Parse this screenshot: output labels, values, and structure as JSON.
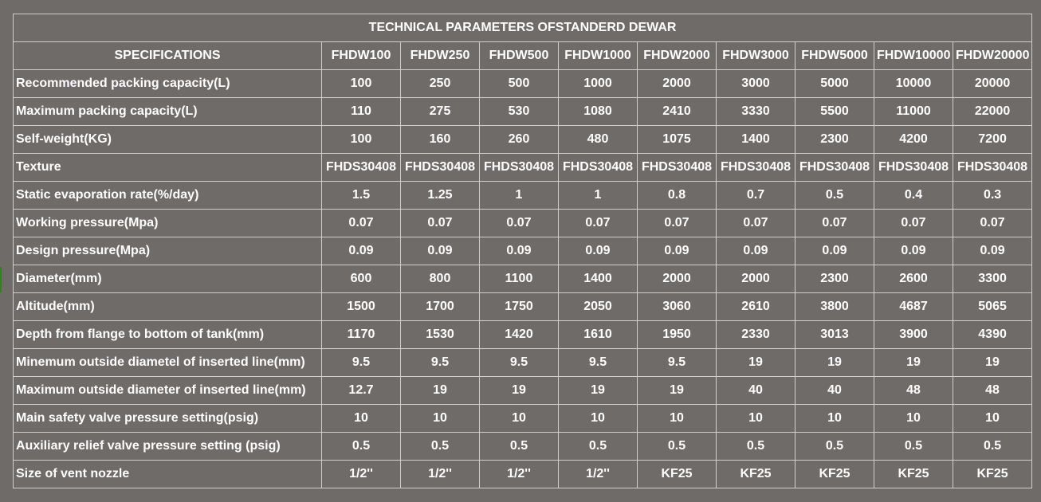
{
  "table": {
    "title": "TECHNICAL PARAMETERS OFSTANDERD DEWAR",
    "header_label": "SPECIFICATIONS",
    "models": [
      "FHDW100",
      "FHDW250",
      "FHDW500",
      "FHDW1000",
      "FHDW2000",
      "FHDW3000",
      "FHDW5000",
      "FHDW10000",
      "FHDW20000"
    ],
    "rows": [
      {
        "label": "Recommended packing capacity(L)",
        "values": [
          "100",
          "250",
          "500",
          "1000",
          "2000",
          "3000",
          "5000",
          "10000",
          "20000"
        ]
      },
      {
        "label": "Maximum packing capacity(L)",
        "values": [
          "110",
          "275",
          "530",
          "1080",
          "2410",
          "3330",
          "5500",
          "11000",
          "22000"
        ]
      },
      {
        "label": "Self-weight(KG)",
        "values": [
          "100",
          "160",
          "260",
          "480",
          "1075",
          "1400",
          "2300",
          "4200",
          "7200"
        ]
      },
      {
        "label": "Texture",
        "values": [
          "FHDS30408",
          "FHDS30408",
          "FHDS30408",
          "FHDS30408",
          "FHDS30408",
          "FHDS30408",
          "FHDS30408",
          "FHDS30408",
          "FHDS30408"
        ]
      },
      {
        "label": "Static evaporation rate(%/day)",
        "values": [
          "1.5",
          "1.25",
          "1",
          "1",
          "0.8",
          "0.7",
          "0.5",
          "0.4",
          "0.3"
        ]
      },
      {
        "label": "Working pressure(Mpa)",
        "values": [
          "0.07",
          "0.07",
          "0.07",
          "0.07",
          "0.07",
          "0.07",
          "0.07",
          "0.07",
          "0.07"
        ]
      },
      {
        "label": "Design pressure(Mpa)",
        "values": [
          "0.09",
          "0.09",
          "0.09",
          "0.09",
          "0.09",
          "0.09",
          "0.09",
          "0.09",
          "0.09"
        ]
      },
      {
        "label": "Diameter(mm)",
        "values": [
          "600",
          "800",
          "1100",
          "1400",
          "2000",
          "2000",
          "2300",
          "2600",
          "3300"
        ]
      },
      {
        "label": "Altitude(mm)",
        "values": [
          "1500",
          "1700",
          "1750",
          "2050",
          "3060",
          "2610",
          "3800",
          "4687",
          "5065"
        ]
      },
      {
        "label": "Depth from flange to bottom of tank(mm)",
        "values": [
          "1170",
          "1530",
          "1420",
          "1610",
          "1950",
          "2330",
          "3013",
          "3900",
          "4390"
        ]
      },
      {
        "label": "Minemum outside diametel of inserted line(mm)",
        "values": [
          "9.5",
          "9.5",
          "9.5",
          "9.5",
          "9.5",
          "19",
          "19",
          "19",
          "19"
        ]
      },
      {
        "label": "Maximum outside diameter of inserted line(mm)",
        "values": [
          "12.7",
          "19",
          "19",
          "19",
          "19",
          "40",
          "40",
          "48",
          "48"
        ]
      },
      {
        "label": "Main safety valve pressure setting(psig)",
        "values": [
          "10",
          "10",
          "10",
          "10",
          "10",
          "10",
          "10",
          "10",
          "10"
        ]
      },
      {
        "label": "Auxiliary relief valve pressure setting (psig)",
        "values": [
          "0.5",
          "0.5",
          "0.5",
          "0.5",
          "0.5",
          "0.5",
          "0.5",
          "0.5",
          "0.5"
        ]
      },
      {
        "label": "Size of vent nozzle",
        "values": [
          "1/2''",
          "1/2''",
          "1/2''",
          "1/2''",
          "KF25",
          "KF25",
          "KF25",
          "KF25",
          "KF25"
        ]
      }
    ]
  }
}
